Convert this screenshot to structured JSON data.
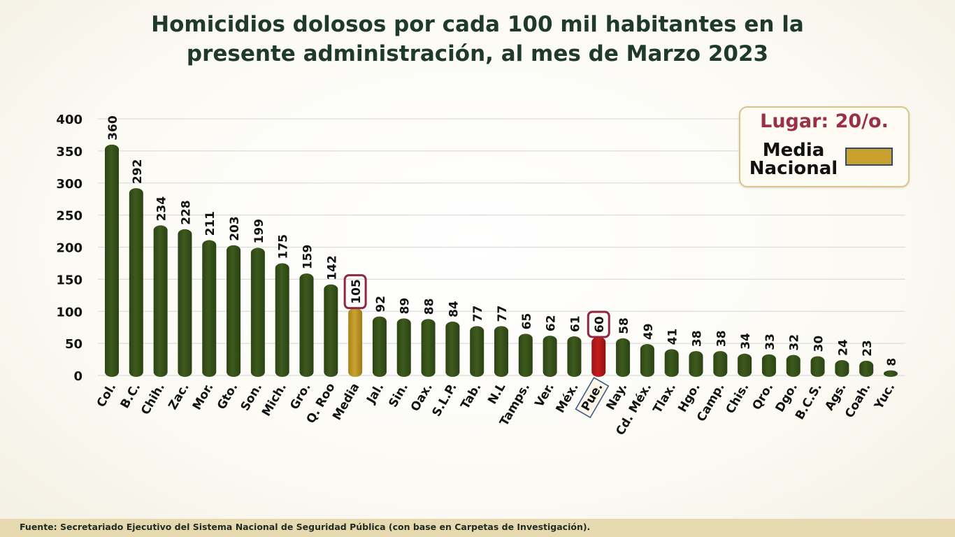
{
  "title_line1": "Homicidios dolosos por cada 100 mil habitantes en la",
  "title_line2": "presente administración, al mes de Marzo 2023",
  "legend": {
    "rank": "Lugar: 20/o.",
    "media_line1": "Media",
    "media_line2": "Nacional"
  },
  "footer": "Fuente:  Secretariado Ejecutivo del Sistema Nacional de Seguridad Pública (con base en Carpetas de Investigación).",
  "colors": {
    "bar": "#3e5a1e",
    "media": "#c9a22e",
    "highlight": "#c41e1e",
    "callout_border": "#8e2742",
    "label_box_border": "#3a5a8a"
  },
  "chart_data": {
    "type": "bar",
    "title": "Homicidios dolosos por cada 100 mil habitantes en la presente administración, al mes de Marzo 2023",
    "xlabel": "",
    "ylabel": "",
    "ylim": [
      0,
      400
    ],
    "yticks": [
      0,
      50,
      100,
      150,
      200,
      250,
      300,
      350,
      400
    ],
    "grid": true,
    "categories": [
      "Col.",
      "B.C.",
      "Chih.",
      "Zac.",
      "Mor.",
      "Gto.",
      "Son.",
      "Mich.",
      "Gro.",
      "Q. Roo",
      "Media",
      "Jal.",
      "Sin.",
      "Oax.",
      "S.L.P.",
      "Tab.",
      "N.L",
      "Tamps.",
      "Ver.",
      "Méx.",
      "Pue.",
      "Nay.",
      "Cd. Méx.",
      "Tlax.",
      "Hgo.",
      "Camp.",
      "Chis.",
      "Qro.",
      "Dgo.",
      "B.C.S.",
      "Ags.",
      "Coah.",
      "Yuc."
    ],
    "values": [
      360,
      292,
      234,
      228,
      211,
      203,
      199,
      175,
      159,
      142,
      105,
      92,
      89,
      88,
      84,
      77,
      77,
      65,
      62,
      61,
      60,
      58,
      49,
      41,
      38,
      38,
      34,
      33,
      32,
      30,
      24,
      23,
      8
    ],
    "media_category": "Media",
    "highlight_category": "Pue."
  }
}
